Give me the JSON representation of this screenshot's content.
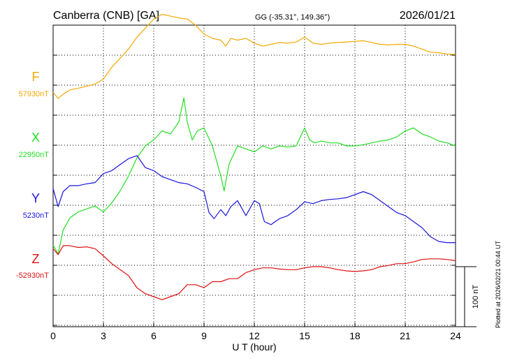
{
  "header": {
    "station": "Canberra (CNB)  [GA]",
    "coords": "GG (-35.31°, 149.36°)",
    "date": "2026/01/21"
  },
  "footer": {
    "plotted": "Plotted at 2026/02/21 00:44 UT"
  },
  "colors": {
    "F": "#f5a800",
    "X": "#22dd22",
    "Y": "#1a14dd",
    "Z": "#e01010",
    "grid": "#000000"
  },
  "chart_data": {
    "type": "line",
    "xlabel": "U T (hour)",
    "xlim": [
      0,
      24
    ],
    "xticks": [
      "0",
      "3",
      "6",
      "9",
      "12",
      "15",
      "18",
      "21",
      "24"
    ],
    "scale_label": "100 nT",
    "scale_nT": 100,
    "series": [
      {
        "name": "F",
        "baseline_label": "57930nT",
        "baseline_nT": 57930,
        "x": [
          0,
          0.3,
          0.6,
          1,
          1.5,
          2,
          2.5,
          3,
          3.5,
          4,
          4.5,
          5,
          5.5,
          6,
          6.5,
          7,
          7.5,
          8,
          8.5,
          9,
          9.5,
          10,
          10.3,
          10.6,
          11,
          11.5,
          12,
          12.5,
          13,
          13.5,
          14,
          14.5,
          15,
          15.5,
          16,
          16.5,
          17,
          17.5,
          18,
          18.5,
          19,
          19.5,
          20,
          20.5,
          21,
          21.5,
          22,
          22.5,
          23,
          23.5,
          24
        ],
        "values": [
          57918,
          57908,
          57915,
          57922,
          57925,
          57928,
          57932,
          57940,
          57960,
          57975,
          57990,
          58010,
          58025,
          58040,
          58048,
          58045,
          58042,
          58040,
          58030,
          58015,
          58008,
          58005,
          57995,
          58008,
          58005,
          58008,
          58000,
          57995,
          57998,
          58001,
          58000,
          58002,
          58010,
          58000,
          57998,
          58000,
          58001,
          58002,
          58003,
          58004,
          58001,
          57998,
          57997,
          57998,
          57998,
          57995,
          57990,
          57985,
          57984,
          57982,
          57981
        ]
      },
      {
        "name": "X",
        "baseline_label": "22950nT",
        "baseline_nT": 22950,
        "x": [
          0,
          0.3,
          0.6,
          1,
          1.5,
          2,
          2.5,
          3,
          3.5,
          4,
          4.5,
          5,
          5.5,
          6,
          6.5,
          7,
          7.5,
          7.8,
          8,
          8.3,
          8.6,
          9,
          9.5,
          10,
          10.2,
          10.5,
          11,
          11.5,
          12,
          12.5,
          13,
          13.5,
          14,
          14.5,
          15,
          15.3,
          15.6,
          16,
          16.5,
          17,
          17.5,
          18,
          18.5,
          19,
          19.5,
          20,
          20.5,
          21,
          21.5,
          22,
          22.5,
          23,
          23.5,
          24
        ],
        "values": [
          22785,
          22770,
          22810,
          22830,
          22840,
          22845,
          22850,
          22840,
          22855,
          22875,
          22900,
          22930,
          22950,
          22960,
          22975,
          22970,
          22990,
          23030,
          22990,
          22960,
          22975,
          22980,
          22950,
          22900,
          22875,
          22920,
          22950,
          22945,
          22940,
          22950,
          22945,
          22950,
          22948,
          22950,
          22980,
          22960,
          22955,
          22958,
          22955,
          22955,
          22950,
          22950,
          22952,
          22955,
          22958,
          22960,
          22965,
          22975,
          22980,
          22970,
          22965,
          22958,
          22955,
          22950
        ]
      },
      {
        "name": "Y",
        "baseline_label": "5230nT",
        "baseline_nT": 5230,
        "x": [
          0,
          0.3,
          0.6,
          1,
          1.5,
          2,
          2.5,
          3,
          3.5,
          4,
          4.5,
          5,
          5.5,
          6,
          6.5,
          7,
          7.5,
          8,
          8.5,
          9,
          9.3,
          9.6,
          10,
          10.3,
          10.6,
          11,
          11.5,
          12,
          12.3,
          12.6,
          13,
          13.5,
          14,
          14.5,
          15,
          15.5,
          16,
          16.5,
          17,
          17.5,
          18,
          18.5,
          19,
          19.5,
          20,
          20.5,
          21,
          21.5,
          22,
          22.5,
          23,
          23.5,
          24
        ],
        "values": [
          5260,
          5230,
          5255,
          5265,
          5265,
          5268,
          5270,
          5285,
          5290,
          5300,
          5310,
          5315,
          5295,
          5290,
          5280,
          5275,
          5270,
          5268,
          5262,
          5255,
          5220,
          5210,
          5225,
          5215,
          5230,
          5240,
          5215,
          5240,
          5235,
          5205,
          5200,
          5210,
          5215,
          5225,
          5238,
          5235,
          5240,
          5242,
          5243,
          5245,
          5250,
          5255,
          5250,
          5240,
          5230,
          5220,
          5215,
          5205,
          5195,
          5180,
          5172,
          5170,
          5170
        ]
      },
      {
        "name": "Z",
        "baseline_label": "-52930nT",
        "baseline_nT": -52930,
        "x": [
          0,
          0.3,
          0.6,
          1,
          1.5,
          2,
          2.5,
          3,
          3.5,
          4,
          4.5,
          5,
          5.5,
          6,
          6.5,
          7,
          7.5,
          8,
          8.5,
          9,
          9.5,
          10,
          10.5,
          11,
          11.5,
          12,
          12.5,
          13,
          13.5,
          14,
          14.5,
          15,
          15.5,
          16,
          16.5,
          17,
          17.5,
          18,
          18.5,
          19,
          19.5,
          20,
          20.5,
          21,
          21.5,
          22,
          22.5,
          23,
          23.5,
          24
        ],
        "values": [
          -52900,
          -52910,
          -52895,
          -52895,
          -52898,
          -52897,
          -52900,
          -52912,
          -52925,
          -52935,
          -52945,
          -52965,
          -52975,
          -52980,
          -52985,
          -52980,
          -52975,
          -52960,
          -52960,
          -52965,
          -52955,
          -52955,
          -52950,
          -52950,
          -52940,
          -52935,
          -52932,
          -52932,
          -52934,
          -52935,
          -52935,
          -52932,
          -52930,
          -52930,
          -52932,
          -52935,
          -52937,
          -52938,
          -52937,
          -52935,
          -52930,
          -52928,
          -52925,
          -52925,
          -52922,
          -52918,
          -52917,
          -52917,
          -52918,
          -52920
        ]
      }
    ]
  }
}
